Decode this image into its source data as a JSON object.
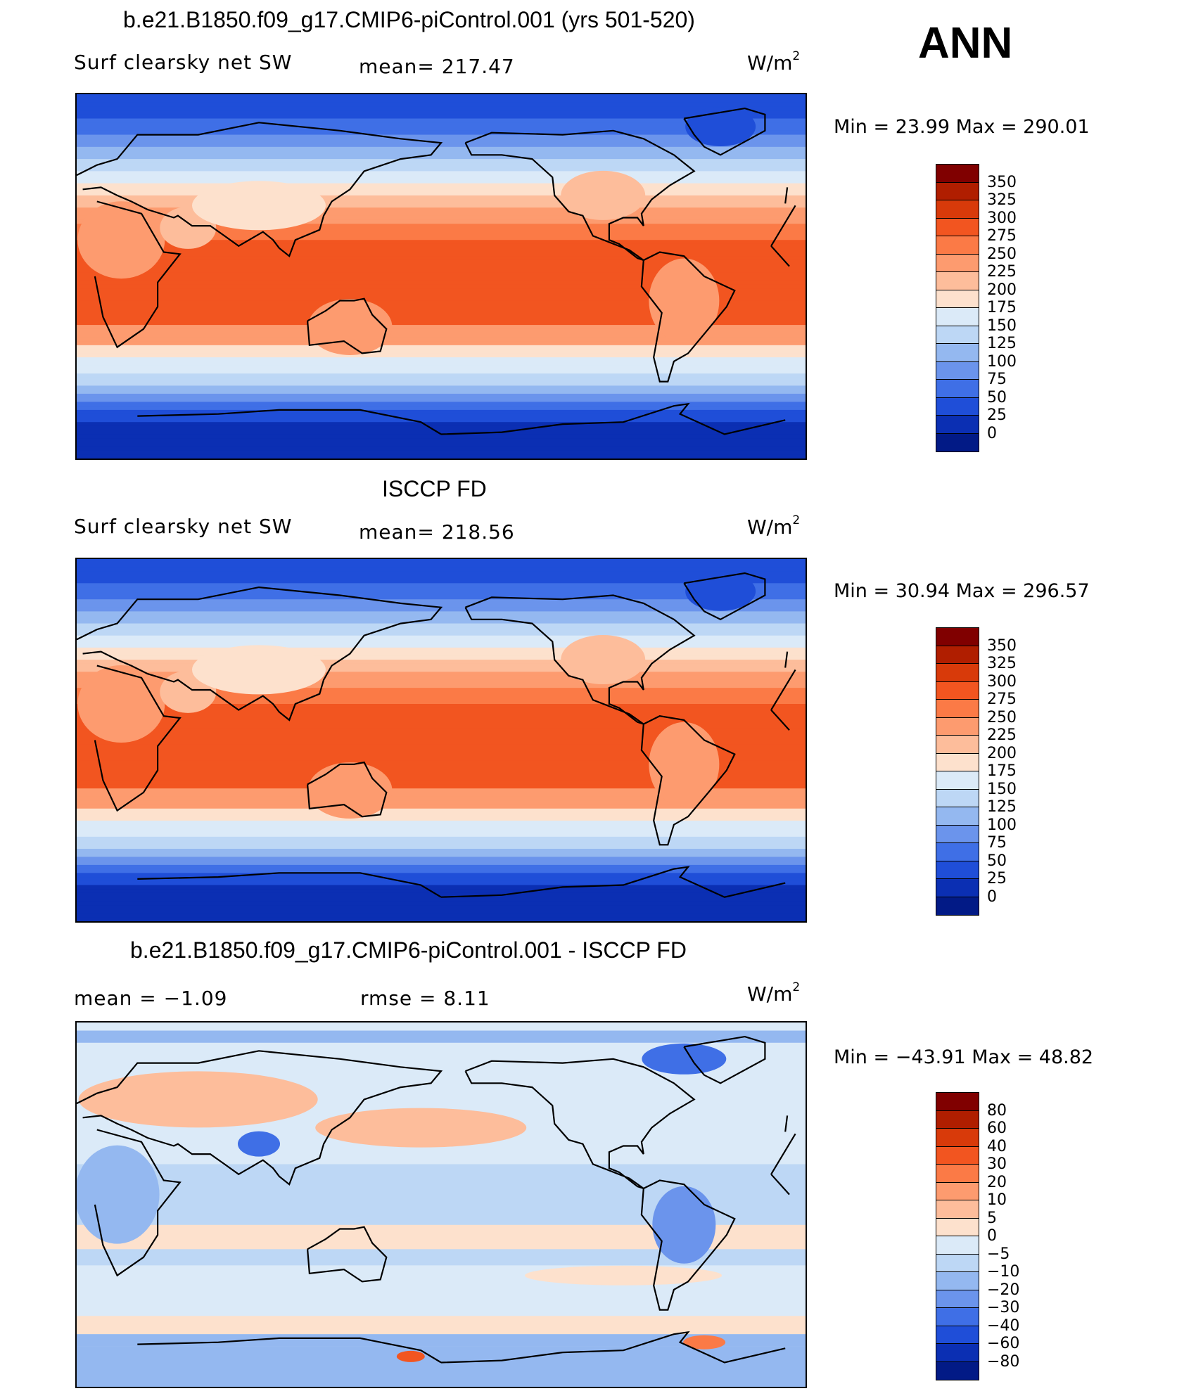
{
  "ann_label": "ANN",
  "panels": [
    {
      "title": "b.e21.B1850.f09_g17.CMIP6-piControl.001 (yrs 501-520)",
      "left_label": "Surf clearsky net SW",
      "stat_label": "mean= 217.47",
      "units": "W/m",
      "units_exp": "2",
      "minmax": "Min =   23.99 Max = 290.01",
      "field": "model",
      "colorbar_ticks": [
        "350",
        "325",
        "300",
        "275",
        "250",
        "225",
        "200",
        "175",
        "150",
        "125",
        "100",
        "75",
        "50",
        "25",
        "0"
      ],
      "colorbar_colors": [
        "#800000",
        "#b01e00",
        "#d83a0a",
        "#f25520",
        "#fb7a46",
        "#fd9b6f",
        "#fdbd9b",
        "#fde1cd",
        "#dbeaf8",
        "#bdd7f5",
        "#94b8f0",
        "#6b94ec",
        "#3f6fe6",
        "#1f4ed8",
        "#0b2fb3",
        "#021a86"
      ]
    },
    {
      "title": "ISCCP FD",
      "left_label": "Surf clearsky net SW",
      "stat_label": "mean= 218.56",
      "units": "W/m",
      "units_exp": "2",
      "minmax": "Min =   30.94 Max = 296.57",
      "field": "obs",
      "colorbar_ticks": [
        "350",
        "325",
        "300",
        "275",
        "250",
        "225",
        "200",
        "175",
        "150",
        "125",
        "100",
        "75",
        "50",
        "25",
        "0"
      ],
      "colorbar_colors": [
        "#800000",
        "#b01e00",
        "#d83a0a",
        "#f25520",
        "#fb7a46",
        "#fd9b6f",
        "#fdbd9b",
        "#fde1cd",
        "#dbeaf8",
        "#bdd7f5",
        "#94b8f0",
        "#6b94ec",
        "#3f6fe6",
        "#1f4ed8",
        "#0b2fb3",
        "#021a86"
      ]
    },
    {
      "title": "b.e21.B1850.f09_g17.CMIP6-piControl.001 - ISCCP FD",
      "left_label": "mean =   −1.09",
      "stat_label": "rmse =    8.11",
      "units": "W/m",
      "units_exp": "2",
      "minmax": "Min = −43.91 Max =   48.82",
      "field": "diff",
      "colorbar_ticks": [
        "80",
        "60",
        "40",
        "30",
        "20",
        "10",
        "5",
        "0",
        "−5",
        "−10",
        "−20",
        "−30",
        "−40",
        "−60",
        "−80"
      ],
      "colorbar_colors": [
        "#800000",
        "#b01e00",
        "#d83a0a",
        "#f25520",
        "#fb7a46",
        "#fd9b6f",
        "#fdbd9b",
        "#fde1cd",
        "#dbeaf8",
        "#bdd7f5",
        "#94b8f0",
        "#6b94ec",
        "#3f6fe6",
        "#1f4ed8",
        "#0b2fb3",
        "#021a86"
      ]
    }
  ]
}
